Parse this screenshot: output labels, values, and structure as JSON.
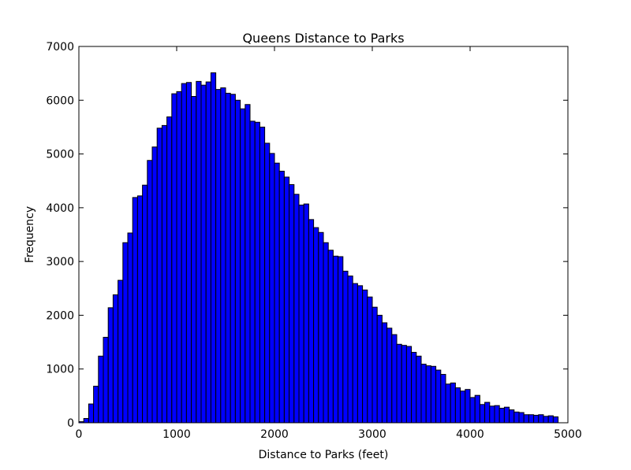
{
  "chart_data": {
    "type": "bar",
    "title": "Queens Distance to Parks",
    "xlabel": "Distance to Parks (feet)",
    "ylabel": "Frequency",
    "xlim": [
      0,
      5000
    ],
    "ylim": [
      0,
      7000
    ],
    "x_ticks": [
      "0",
      "1000",
      "2000",
      "3000",
      "4000",
      "5000"
    ],
    "y_ticks": [
      "0",
      "1000",
      "2000",
      "3000",
      "4000",
      "5000",
      "6000",
      "7000"
    ],
    "bin_width": 50,
    "bin_start": 0,
    "bar_color": "#0000ff",
    "edge_color": "#000000",
    "grid": false,
    "values": [
      20,
      80,
      350,
      680,
      1240,
      1590,
      2140,
      2380,
      2650,
      3350,
      3530,
      4190,
      4220,
      4420,
      4880,
      5130,
      5480,
      5530,
      5690,
      6120,
      6160,
      6310,
      6330,
      6070,
      6350,
      6280,
      6340,
      6510,
      6200,
      6230,
      6130,
      6110,
      6000,
      5840,
      5920,
      5610,
      5590,
      5500,
      5200,
      5010,
      4830,
      4680,
      4570,
      4430,
      4250,
      4050,
      4070,
      3780,
      3630,
      3540,
      3350,
      3210,
      3100,
      3090,
      2820,
      2730,
      2590,
      2550,
      2470,
      2340,
      2150,
      2000,
      1860,
      1760,
      1640,
      1460,
      1440,
      1420,
      1310,
      1240,
      1090,
      1060,
      1050,
      980,
      900,
      720,
      740,
      650,
      590,
      620,
      470,
      510,
      340,
      380,
      310,
      320,
      270,
      290,
      240,
      200,
      190,
      150,
      150,
      140,
      150,
      120,
      130,
      110
    ]
  }
}
